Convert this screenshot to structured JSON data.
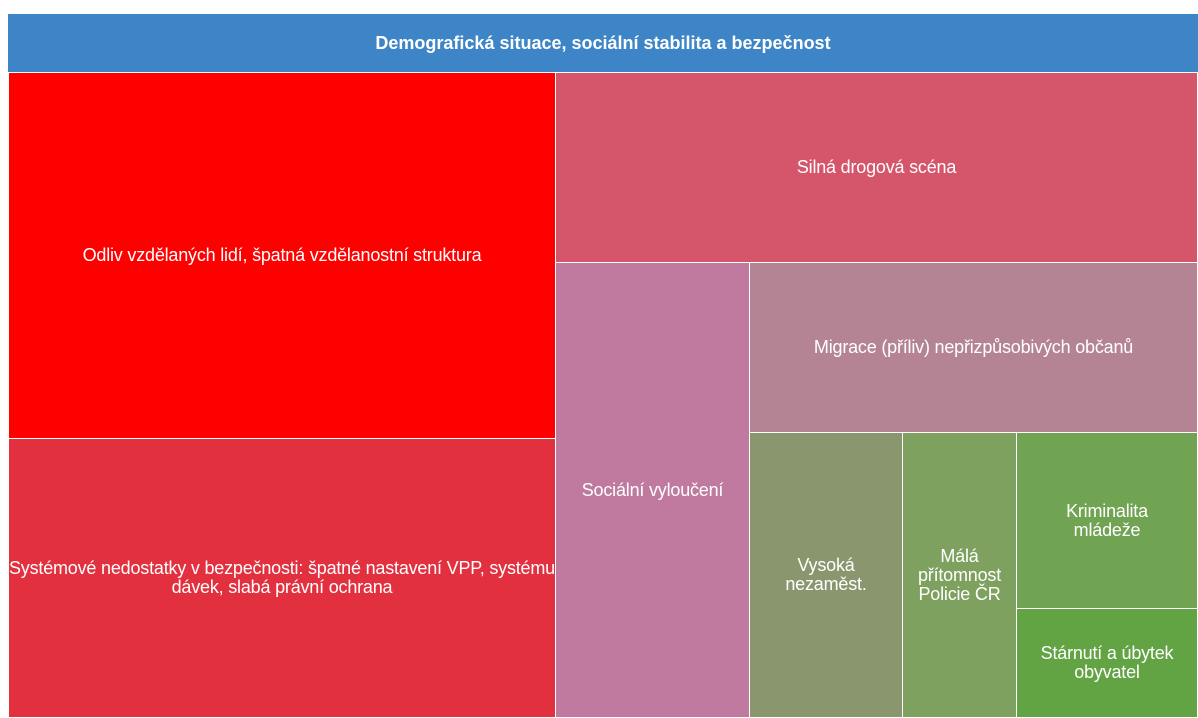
{
  "header": {
    "title": "Demografická situace, sociální stabilita a bezpečnost"
  },
  "nodes": [
    {
      "label": "Odliv vzdělaných lidí, špatná vzdělanostní struktura",
      "color": "#ff0000"
    },
    {
      "label": "Systémové nedostatky v bezpečnosti: špatné nastavení VPP, systému dávek, slabá právní ochrana",
      "color": "#e3303f"
    },
    {
      "label": "Silná drogová scéna",
      "color": "#d5556b"
    },
    {
      "label": "Sociální vyloučení",
      "color": "#c07a9f"
    },
    {
      "label": "Migrace (příliv) nepřizpůsobivých občanů",
      "color": "#b48494"
    },
    {
      "label": "Vysoká nezaměst.",
      "color": "#8a966e"
    },
    {
      "label": "Málá přítomnost Policie ČR",
      "color": "#7ea160"
    },
    {
      "label": "Kriminalita mládeže",
      "color": "#70a352"
    },
    {
      "label": "Stárnutí a úbytek obyvatel",
      "color": "#62a344"
    }
  ]
}
